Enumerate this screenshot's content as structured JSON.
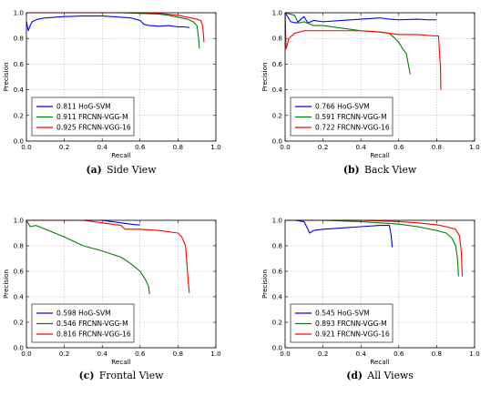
{
  "chart_data": [
    {
      "id": "side-view",
      "type": "line",
      "caption_letter": "(a)",
      "caption_text": "Side View",
      "xlabel": "Recall",
      "ylabel": "Precision",
      "xlim": [
        0.0,
        1.0
      ],
      "ylim": [
        0.0,
        1.0
      ],
      "xticks": [
        "0.0",
        "0.2",
        "0.4",
        "0.6",
        "0.8",
        "1.0"
      ],
      "yticks": [
        "0.0",
        "0.2",
        "0.4",
        "0.6",
        "0.8",
        "1.0"
      ],
      "grid": true,
      "legend_position": "lower-left",
      "series": [
        {
          "name": "0.811 HoG-SVM",
          "color": "#0000ff",
          "points": [
            [
              0.0,
              0.93
            ],
            [
              0.01,
              0.86
            ],
            [
              0.02,
              0.9
            ],
            [
              0.03,
              0.93
            ],
            [
              0.06,
              0.95
            ],
            [
              0.1,
              0.96
            ],
            [
              0.2,
              0.97
            ],
            [
              0.3,
              0.975
            ],
            [
              0.4,
              0.975
            ],
            [
              0.45,
              0.97
            ],
            [
              0.5,
              0.965
            ],
            [
              0.55,
              0.96
            ],
            [
              0.6,
              0.94
            ],
            [
              0.62,
              0.91
            ],
            [
              0.65,
              0.9
            ],
            [
              0.7,
              0.895
            ],
            [
              0.75,
              0.9
            ],
            [
              0.8,
              0.89
            ],
            [
              0.83,
              0.89
            ],
            [
              0.86,
              0.885
            ]
          ]
        },
        {
          "name": "0.911 FRCNN-VGG-M",
          "color": "#008000",
          "points": [
            [
              0.0,
              1.0
            ],
            [
              0.3,
              1.0
            ],
            [
              0.5,
              1.0
            ],
            [
              0.6,
              0.995
            ],
            [
              0.7,
              0.99
            ],
            [
              0.75,
              0.98
            ],
            [
              0.8,
              0.965
            ],
            [
              0.85,
              0.95
            ],
            [
              0.88,
              0.93
            ],
            [
              0.9,
              0.9
            ],
            [
              0.905,
              0.85
            ],
            [
              0.91,
              0.78
            ],
            [
              0.913,
              0.72
            ]
          ]
        },
        {
          "name": "0.925 FRCNN-VGG-16",
          "color": "#ff0000",
          "points": [
            [
              0.0,
              1.0
            ],
            [
              0.4,
              1.0
            ],
            [
              0.6,
              1.0
            ],
            [
              0.7,
              0.995
            ],
            [
              0.8,
              0.98
            ],
            [
              0.85,
              0.965
            ],
            [
              0.9,
              0.95
            ],
            [
              0.92,
              0.94
            ],
            [
              0.93,
              0.9
            ],
            [
              0.935,
              0.82
            ],
            [
              0.937,
              0.77
            ]
          ]
        }
      ]
    },
    {
      "id": "back-view",
      "type": "line",
      "caption_letter": "(b)",
      "caption_text": "Back View",
      "xlabel": "Recall",
      "ylabel": "Precision",
      "xlim": [
        0.0,
        1.0
      ],
      "ylim": [
        0.0,
        1.0
      ],
      "xticks": [
        "0.0",
        "0.2",
        "0.4",
        "0.6",
        "0.8",
        "1.0"
      ],
      "yticks": [
        "0.0",
        "0.2",
        "0.4",
        "0.6",
        "0.8",
        "1.0"
      ],
      "grid": true,
      "legend_position": "lower-left",
      "series": [
        {
          "name": "0.766 HoG-SVM",
          "color": "#0000ff",
          "points": [
            [
              0.0,
              1.0
            ],
            [
              0.03,
              0.93
            ],
            [
              0.06,
              0.92
            ],
            [
              0.1,
              0.97
            ],
            [
              0.12,
              0.92
            ],
            [
              0.15,
              0.94
            ],
            [
              0.2,
              0.93
            ],
            [
              0.3,
              0.94
            ],
            [
              0.4,
              0.95
            ],
            [
              0.5,
              0.96
            ],
            [
              0.55,
              0.95
            ],
            [
              0.6,
              0.945
            ],
            [
              0.7,
              0.95
            ],
            [
              0.75,
              0.945
            ],
            [
              0.8,
              0.945
            ]
          ]
        },
        {
          "name": "0.591 FRCNN-VGG-M",
          "color": "#008000",
          "points": [
            [
              0.0,
              1.0
            ],
            [
              0.05,
              0.98
            ],
            [
              0.07,
              0.92
            ],
            [
              0.1,
              0.93
            ],
            [
              0.15,
              0.9
            ],
            [
              0.2,
              0.9
            ],
            [
              0.3,
              0.88
            ],
            [
              0.4,
              0.86
            ],
            [
              0.5,
              0.85
            ],
            [
              0.55,
              0.84
            ],
            [
              0.58,
              0.8
            ],
            [
              0.6,
              0.77
            ],
            [
              0.62,
              0.72
            ],
            [
              0.64,
              0.68
            ],
            [
              0.65,
              0.6
            ],
            [
              0.66,
              0.52
            ]
          ]
        },
        {
          "name": "0.722 FRCNN-VGG-16",
          "color": "#ff0000",
          "points": [
            [
              0.0,
              1.0
            ],
            [
              0.005,
              0.72
            ],
            [
              0.02,
              0.8
            ],
            [
              0.05,
              0.84
            ],
            [
              0.1,
              0.86
            ],
            [
              0.2,
              0.86
            ],
            [
              0.3,
              0.86
            ],
            [
              0.4,
              0.86
            ],
            [
              0.5,
              0.85
            ],
            [
              0.6,
              0.83
            ],
            [
              0.7,
              0.83
            ],
            [
              0.78,
              0.82
            ],
            [
              0.81,
              0.82
            ],
            [
              0.815,
              0.68
            ],
            [
              0.82,
              0.58
            ],
            [
              0.822,
              0.4
            ]
          ]
        }
      ]
    },
    {
      "id": "frontal-view",
      "type": "line",
      "caption_letter": "(c)",
      "caption_text": "Frontal View",
      "xlabel": "Recall",
      "ylabel": "Precision",
      "xlim": [
        0.0,
        1.0
      ],
      "ylim": [
        0.0,
        1.0
      ],
      "xticks": [
        "0.0",
        "0.2",
        "0.4",
        "0.6",
        "0.8",
        "1.0"
      ],
      "yticks": [
        "0.0",
        "0.2",
        "0.4",
        "0.6",
        "0.8",
        "1.0"
      ],
      "grid": true,
      "legend_position": "lower-left",
      "series": [
        {
          "name": "0.598 HoG-SVM",
          "color": "#0000ff",
          "points": [
            [
              0.0,
              1.0
            ],
            [
              0.2,
              1.0
            ],
            [
              0.4,
              1.0
            ],
            [
              0.45,
              0.99
            ],
            [
              0.5,
              0.98
            ],
            [
              0.55,
              0.97
            ],
            [
              0.58,
              0.965
            ],
            [
              0.6,
              0.965
            ]
          ]
        },
        {
          "name": "0.546 FRCNN-VGG-M",
          "color": "#008000",
          "points": [
            [
              0.0,
              1.0
            ],
            [
              0.02,
              0.95
            ],
            [
              0.05,
              0.96
            ],
            [
              0.1,
              0.93
            ],
            [
              0.2,
              0.87
            ],
            [
              0.3,
              0.8
            ],
            [
              0.4,
              0.76
            ],
            [
              0.5,
              0.71
            ],
            [
              0.55,
              0.66
            ],
            [
              0.6,
              0.6
            ],
            [
              0.63,
              0.53
            ],
            [
              0.645,
              0.48
            ],
            [
              0.65,
              0.42
            ]
          ]
        },
        {
          "name": "0.816 FRCNN-VGG-16",
          "color": "#ff0000",
          "points": [
            [
              0.0,
              1.0
            ],
            [
              0.3,
              1.0
            ],
            [
              0.4,
              0.98
            ],
            [
              0.5,
              0.96
            ],
            [
              0.52,
              0.93
            ],
            [
              0.6,
              0.93
            ],
            [
              0.7,
              0.92
            ],
            [
              0.8,
              0.9
            ],
            [
              0.82,
              0.87
            ],
            [
              0.84,
              0.8
            ],
            [
              0.85,
              0.6
            ],
            [
              0.855,
              0.5
            ],
            [
              0.86,
              0.43
            ]
          ]
        }
      ]
    },
    {
      "id": "all-views",
      "type": "line",
      "caption_letter": "(d)",
      "caption_text": "All Views",
      "xlabel": "Recall",
      "ylabel": "Precision",
      "xlim": [
        0.0,
        1.0
      ],
      "ylim": [
        0.0,
        1.0
      ],
      "xticks": [
        "0.0",
        "0.2",
        "0.4",
        "0.6",
        "0.8",
        "1.0"
      ],
      "yticks": [
        "0.0",
        "0.2",
        "0.4",
        "0.6",
        "0.8",
        "1.0"
      ],
      "grid": true,
      "legend_position": "lower-left",
      "series": [
        {
          "name": "0.545 HoG-SVM",
          "color": "#0000ff",
          "points": [
            [
              0.0,
              1.0
            ],
            [
              0.05,
              1.0
            ],
            [
              0.1,
              0.99
            ],
            [
              0.12,
              0.93
            ],
            [
              0.13,
              0.9
            ],
            [
              0.15,
              0.92
            ],
            [
              0.2,
              0.93
            ],
            [
              0.3,
              0.94
            ],
            [
              0.4,
              0.95
            ],
            [
              0.5,
              0.96
            ],
            [
              0.55,
              0.96
            ],
            [
              0.56,
              0.88
            ],
            [
              0.565,
              0.79
            ]
          ]
        },
        {
          "name": "0.893 FRCNN-VGG-M",
          "color": "#008000",
          "points": [
            [
              0.0,
              1.0
            ],
            [
              0.2,
              1.0
            ],
            [
              0.4,
              0.99
            ],
            [
              0.5,
              0.98
            ],
            [
              0.6,
              0.97
            ],
            [
              0.7,
              0.95
            ],
            [
              0.8,
              0.92
            ],
            [
              0.85,
              0.9
            ],
            [
              0.88,
              0.86
            ],
            [
              0.9,
              0.8
            ],
            [
              0.91,
              0.7
            ],
            [
              0.915,
              0.56
            ]
          ]
        },
        {
          "name": "0.921 FRCNN-VGG-16",
          "color": "#ff0000",
          "points": [
            [
              0.0,
              1.0
            ],
            [
              0.2,
              1.0
            ],
            [
              0.4,
              1.0
            ],
            [
              0.6,
              0.99
            ],
            [
              0.7,
              0.98
            ],
            [
              0.8,
              0.965
            ],
            [
              0.85,
              0.95
            ],
            [
              0.9,
              0.93
            ],
            [
              0.92,
              0.88
            ],
            [
              0.93,
              0.75
            ],
            [
              0.935,
              0.56
            ]
          ]
        }
      ]
    }
  ]
}
